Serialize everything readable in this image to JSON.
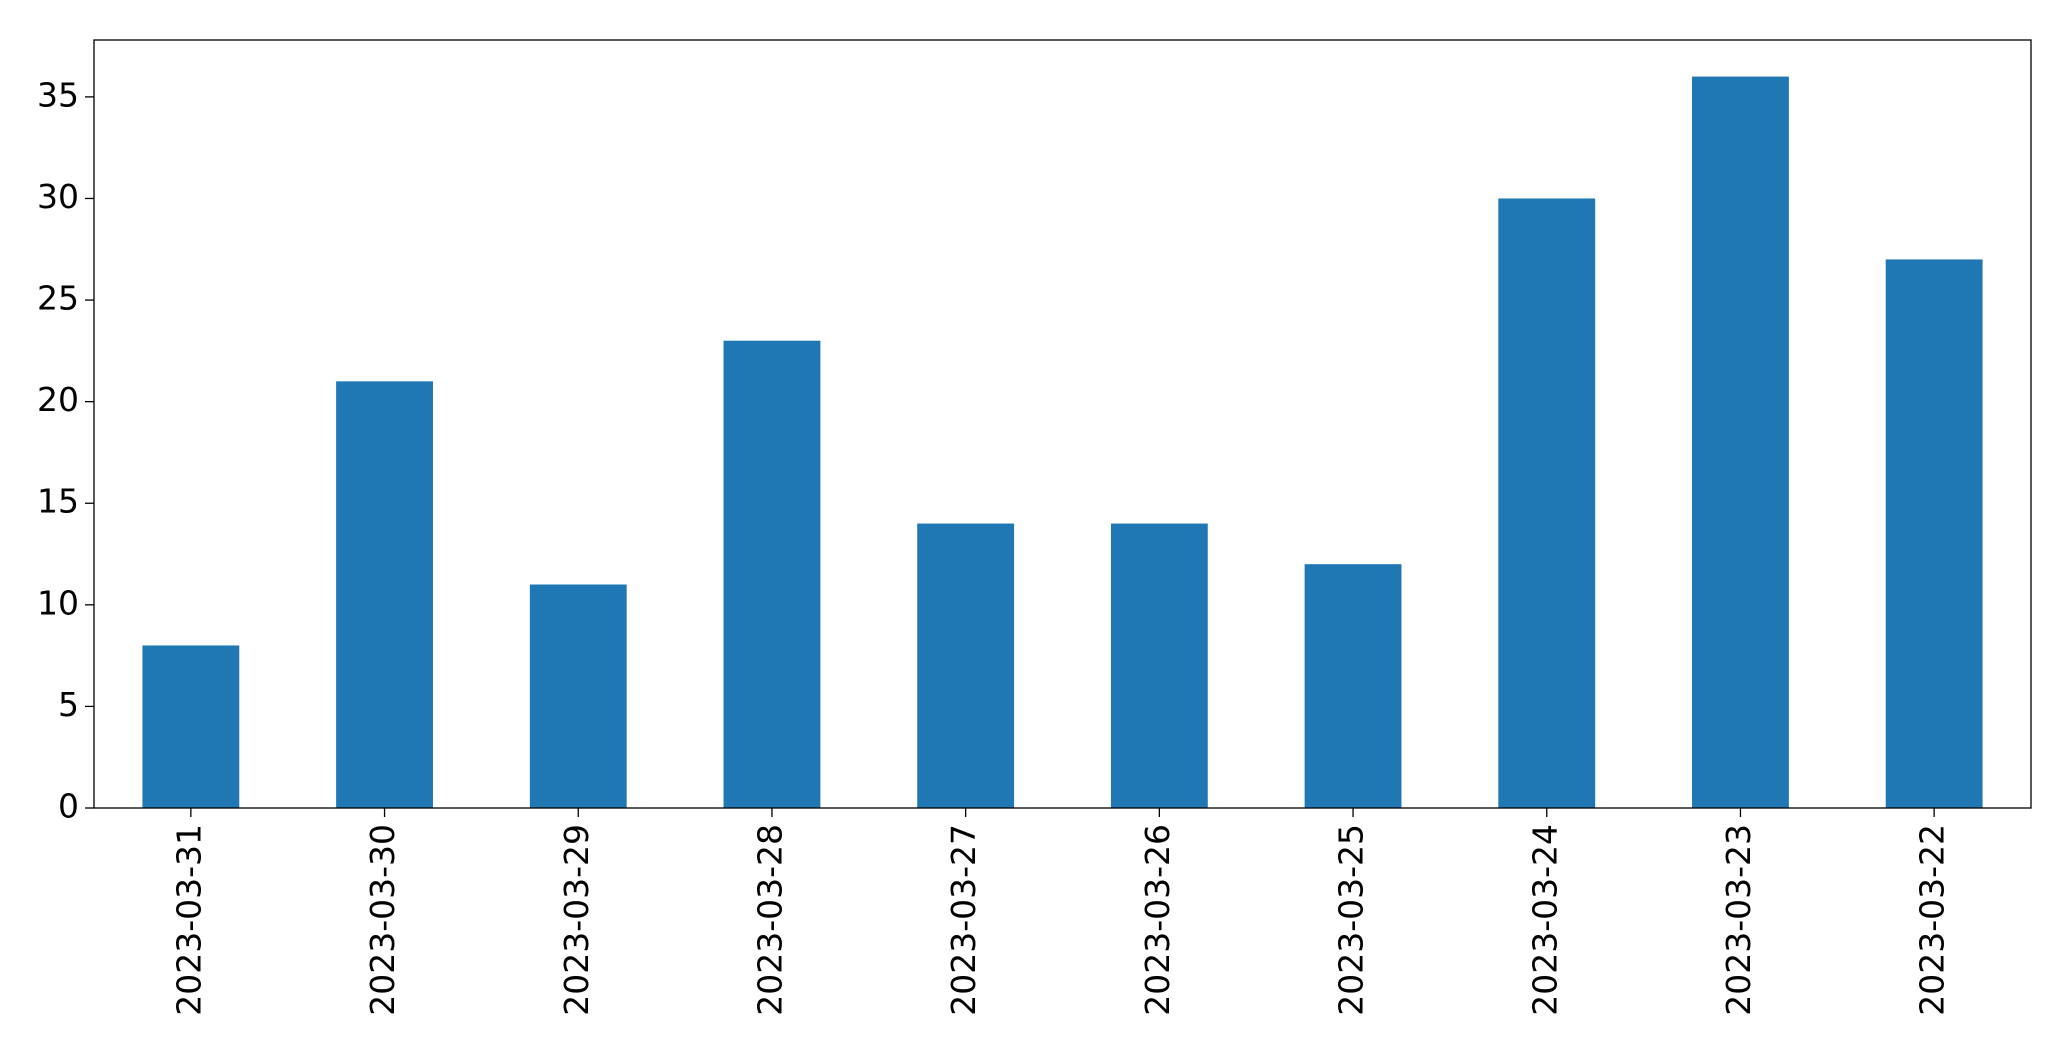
{
  "chart_data": {
    "type": "bar",
    "categories": [
      "2023-03-31",
      "2023-03-30",
      "2023-03-29",
      "2023-03-28",
      "2023-03-27",
      "2023-03-26",
      "2023-03-25",
      "2023-03-24",
      "2023-03-23",
      "2023-03-22"
    ],
    "values": [
      8,
      21,
      11,
      23,
      14,
      14,
      12,
      30,
      36,
      27
    ],
    "color": "#1f77b4",
    "ylim": [
      0,
      37.8
    ],
    "yticks": [
      0,
      5,
      10,
      15,
      20,
      25,
      30,
      35
    ],
    "grid": false
  }
}
